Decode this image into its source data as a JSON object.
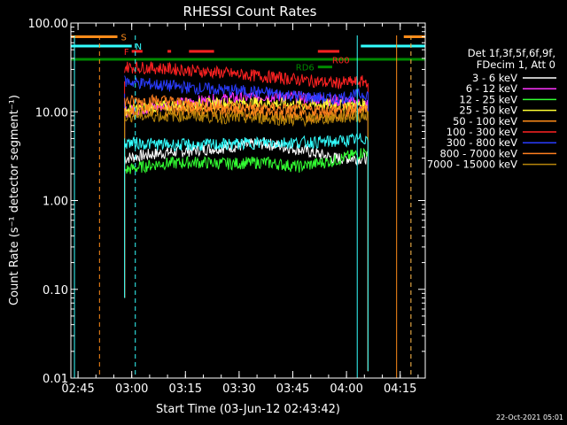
{
  "chart_data": {
    "type": "line",
    "title": "RHESSI Count Rates",
    "xlabel": "Start Time (03-Jun-12 02:43:42)",
    "ylabel": "Count Rate (s⁻¹ detector segment⁻¹)",
    "y_scale": "log",
    "xlim": [
      "02:43",
      "04:22"
    ],
    "ylim": [
      0.01,
      100.0
    ],
    "x_ticks": [
      "02:45",
      "03:00",
      "03:15",
      "03:30",
      "03:45",
      "04:00",
      "04:15"
    ],
    "y_ticks": [
      "100.00",
      "10.00",
      "1.00",
      "0.10",
      "0.01"
    ],
    "legend_position": "right",
    "legend_header": [
      "Det 1f,3f,5f,6f,9f,",
      "FDecim 1, Att 0"
    ],
    "grid": false,
    "data_start": "02:58",
    "data_end": "04:06",
    "series": [
      {
        "name": "3 - 6 keV",
        "color": "#ffffff",
        "values": [
          3.0,
          3.4,
          3.7,
          4.0,
          4.4,
          3.8,
          3.0,
          3.0
        ]
      },
      {
        "name": "6 - 12 keV",
        "color": "#ff33ff",
        "values": [
          10.0,
          11.5,
          13.0,
          14.0,
          15.0,
          14.5,
          13.5,
          12.0
        ]
      },
      {
        "name": "12 - 25 keV",
        "color": "#33ff33",
        "values": [
          2.2,
          2.6,
          2.7,
          2.6,
          2.7,
          2.4,
          2.8,
          3.6
        ]
      },
      {
        "name": "25 - 50 keV",
        "color": "#ffff33",
        "values": [
          10.5,
          11.5,
          12.0,
          12.5,
          12.5,
          12.0,
          12.0,
          12.0
        ]
      },
      {
        "name": "50 - 100 keV",
        "color": "#ff8c1a",
        "values": [
          10.0,
          10.5,
          10.5,
          10.0,
          9.5,
          9.0,
          9.0,
          10.5
        ]
      },
      {
        "name": "100 - 300 keV",
        "color": "#ff2222",
        "values": [
          32.0,
          31.0,
          29.0,
          27.0,
          25.0,
          23.0,
          21.0,
          22.0
        ]
      },
      {
        "name": "300 - 800 keV",
        "color": "#2a3cff",
        "values": [
          22.0,
          20.0,
          18.5,
          17.5,
          16.5,
          15.0,
          14.0,
          16.0
        ]
      },
      {
        "name": "800 - 7000 keV",
        "color": "#ff7f1f",
        "values": [
          13.0,
          13.5,
          12.0,
          11.5,
          11.0,
          10.5,
          10.5,
          11.0
        ]
      },
      {
        "name": "7000 - 15000 keV",
        "color": "#b8860b",
        "values": [
          9.0,
          9.0,
          9.0,
          8.5,
          8.5,
          8.0,
          8.5,
          9.0
        ]
      },
      {
        "name": "",
        "color": "#33ffff",
        "values": [
          4.5,
          4.3,
          4.2,
          4.3,
          4.5,
          4.5,
          4.6,
          5.0
        ]
      }
    ],
    "flag_bars": [
      {
        "label": "S",
        "color": "#ff8c1a",
        "y_value": 70.0,
        "segments": [
          [
            "02:43",
            "02:56"
          ],
          [
            "04:16",
            "04:22"
          ]
        ]
      },
      {
        "label": "N",
        "color": "#33ffff",
        "y_value": 55.0,
        "segments": [
          [
            "02:43",
            "03:00"
          ],
          [
            "04:04",
            "04:22"
          ]
        ]
      },
      {
        "label": "F",
        "color": "#ff2222",
        "y_value": 48.0,
        "segments": [
          [
            "03:00",
            "03:03"
          ],
          [
            "03:10",
            "03:11"
          ],
          [
            "03:16",
            "03:23"
          ],
          [
            "03:52",
            "03:58"
          ]
        ]
      },
      {
        "label": "",
        "color": "#008a00",
        "y_value": 39.0,
        "segments": [
          [
            "02:43",
            "04:22"
          ]
        ]
      },
      {
        "label": "RD6",
        "color": "#008a00",
        "y_value": 32.0,
        "segments": [
          [
            "03:52",
            "03:56"
          ]
        ]
      },
      {
        "label": "R00",
        "color": "#ff2222",
        "y_value": 38.5,
        "segments": []
      }
    ],
    "vertical_markers": [
      {
        "time": "02:44",
        "color": "#33ffff",
        "style": "solid"
      },
      {
        "time": "02:51",
        "color": "#ff8c1a",
        "style": "dashed"
      },
      {
        "time": "03:01",
        "color": "#33ffff",
        "style": "dashed"
      },
      {
        "time": "04:03",
        "color": "#33ffff",
        "style": "solid"
      },
      {
        "time": "04:14",
        "color": "#ff8c1a",
        "style": "solid"
      },
      {
        "time": "04:18",
        "color": "#33ffff",
        "style": "dashed"
      },
      {
        "time": "04:18",
        "color": "#ff8c1a",
        "style": "dashed"
      }
    ],
    "data_gap": [
      "04:06",
      "04:22"
    ]
  },
  "footer": {
    "timestamp": "22-Oct-2021 05:01"
  }
}
